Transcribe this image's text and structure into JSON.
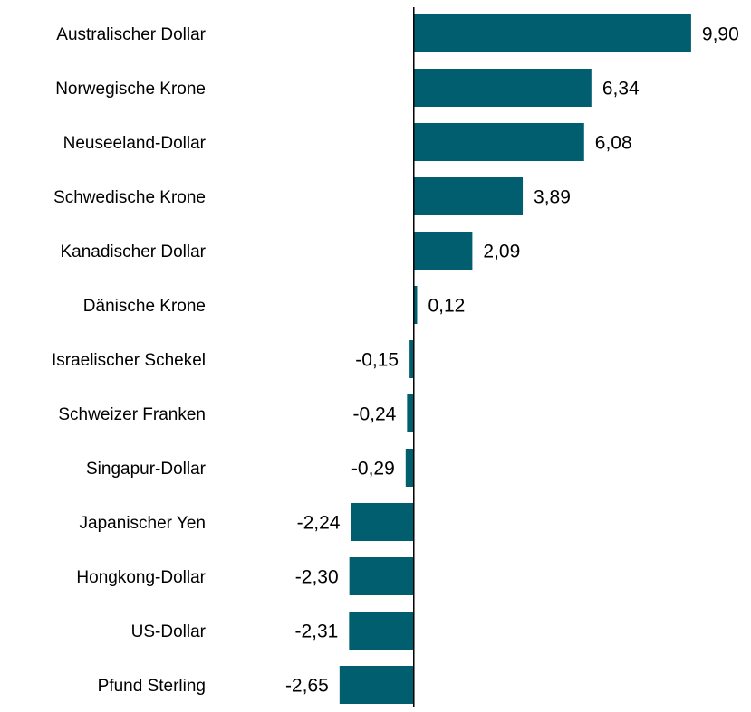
{
  "chart_data": {
    "type": "hbar",
    "categories": [
      "Australischer Dollar",
      "Norwegische Krone",
      "Neuseeland-Dollar",
      "Schwedische Krone",
      "Kanadischer Dollar",
      "Dänische Krone",
      "Israelischer Schekel",
      "Schweizer Franken",
      "Singapur-Dollar",
      "Japanischer Yen",
      "Hongkong-Dollar",
      "US-Dollar",
      "Pfund Sterling"
    ],
    "values": [
      9.9,
      6.34,
      6.08,
      3.89,
      2.09,
      0.12,
      -0.15,
      -0.24,
      -0.29,
      -2.24,
      -2.3,
      -2.31,
      -2.65
    ],
    "value_labels": [
      "9,90",
      "6,34",
      "6,08",
      "3,89",
      "2,09",
      "0,12",
      "-0,15",
      "-0,24",
      "-0,29",
      "-2,24",
      "-2,30",
      "-2,31",
      "-2,65"
    ],
    "color": "#015e6f",
    "xlim": [
      -3,
      10
    ]
  }
}
